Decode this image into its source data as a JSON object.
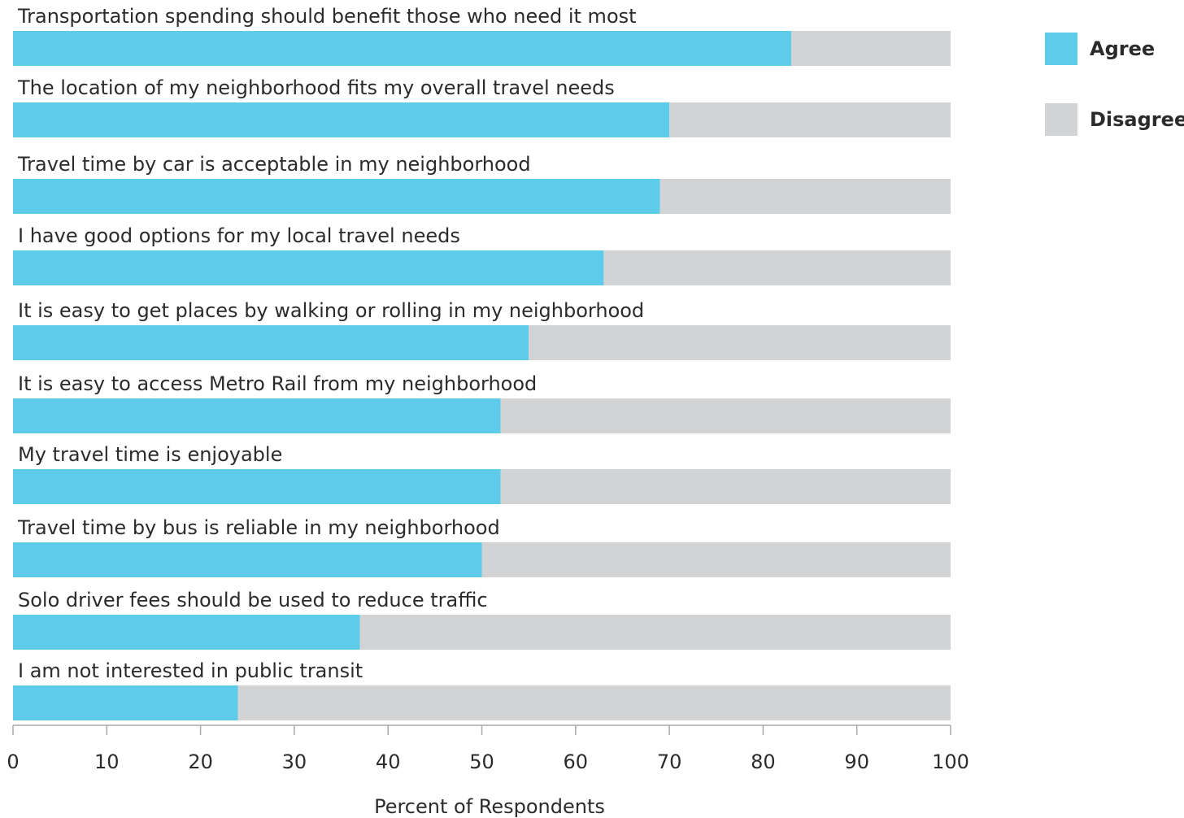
{
  "chart_data": {
    "type": "bar",
    "orientation": "horizontal",
    "stacked": true,
    "categories": [
      "Transportation spending should benefit those who need it most",
      "The location of my neighborhood fits my overall travel needs",
      "Travel time by car is acceptable in my neighborhood",
      "I have good options for my local travel needs",
      "It is easy to get places by walking or rolling in my neighborhood",
      "It is easy to access Metro Rail from my neighborhood",
      "My travel time is enjoyable",
      "Travel time by bus is reliable in my neighborhood",
      "Solo driver fees should be used to reduce traffic",
      "I am not interested in public transit"
    ],
    "series": [
      {
        "name": "Agree",
        "color": "#5ecbeb",
        "values": [
          83,
          70,
          69,
          63,
          55,
          52,
          52,
          50,
          37,
          24
        ]
      },
      {
        "name": "Disagree",
        "color": "#d1d3d4",
        "values": [
          17,
          30,
          31,
          37,
          45,
          48,
          48,
          50,
          63,
          76
        ]
      }
    ],
    "xlabel": "Percent of Respondents",
    "ylabel": "",
    "xlim": [
      0,
      100
    ],
    "xticks": [
      "0",
      "10",
      "20",
      "30",
      "40",
      "50",
      "60",
      "70",
      "80",
      "90",
      "100"
    ],
    "grid": false,
    "legend": {
      "placement": "top-right"
    }
  }
}
